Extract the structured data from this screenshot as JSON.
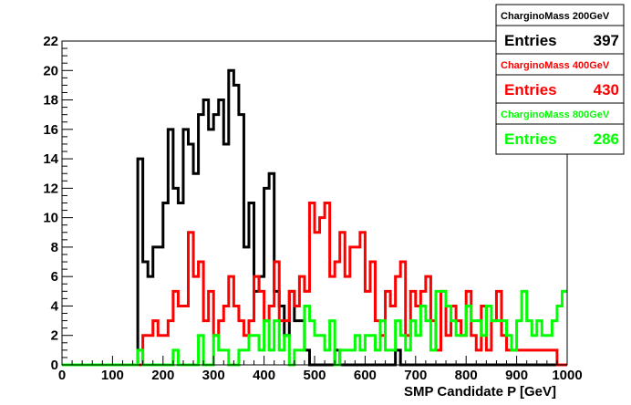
{
  "chart_data": {
    "type": "histogram-step",
    "xlabel": "SMP Candidate P [GeV]",
    "ylabel": "",
    "xlim": [
      0,
      1000
    ],
    "ylim": [
      0,
      22
    ],
    "x_ticks": [
      0,
      100,
      200,
      300,
      400,
      500,
      600,
      700,
      800,
      900,
      1000
    ],
    "y_ticks": [
      0,
      2,
      4,
      6,
      8,
      10,
      12,
      14,
      16,
      18,
      20,
      22
    ],
    "grid": false,
    "legend": "stat boxes, top-right",
    "bin_width": 10,
    "series": [
      {
        "name": "CharginoMass 200GeV",
        "color": "#000000",
        "entries_label": "Entries",
        "entries_value": "397",
        "values": [
          0,
          0,
          0,
          0,
          0,
          0,
          0,
          0,
          0,
          0,
          0,
          0,
          0,
          0,
          0,
          14,
          7,
          6,
          8,
          8,
          11,
          16,
          12,
          11,
          16,
          15,
          13,
          17,
          18,
          16,
          17,
          18,
          15,
          20,
          19,
          17,
          8,
          11,
          5,
          6,
          12,
          13,
          5,
          4,
          2,
          5,
          3,
          3,
          1,
          0,
          0,
          0,
          0,
          0,
          1,
          0,
          0,
          0,
          0,
          0,
          0,
          0,
          0,
          0,
          0,
          0,
          1,
          0,
          0,
          0,
          0,
          0,
          0,
          0,
          0,
          0,
          0,
          0,
          0,
          0,
          0,
          0,
          0,
          0,
          0,
          0,
          0,
          0,
          0,
          0,
          0,
          0,
          0,
          0,
          0,
          0,
          0,
          0,
          0,
          0
        ]
      },
      {
        "name": "CharginoMass 400GeV",
        "color": "#ff0000",
        "entries_label": "Entries",
        "entries_value": "430",
        "values": [
          0,
          0,
          0,
          0,
          0,
          0,
          0,
          0,
          0,
          0,
          0,
          0,
          0,
          0,
          0,
          0,
          2,
          2,
          3,
          2,
          2,
          3,
          5,
          4,
          4,
          9,
          6,
          7,
          3,
          5,
          2,
          3,
          4,
          6,
          4,
          3,
          2,
          3,
          6,
          5,
          3,
          4,
          7,
          3,
          3,
          5,
          4,
          6,
          5,
          11,
          9,
          10,
          11,
          6,
          7,
          9,
          6,
          8,
          8,
          9,
          5,
          7,
          3,
          2,
          5,
          4,
          6,
          7,
          2,
          5,
          4,
          5,
          6,
          3,
          1,
          5,
          2,
          4,
          3,
          2,
          5,
          2,
          1,
          4,
          1,
          3,
          5,
          2,
          1,
          1,
          1,
          1,
          1,
          1,
          1,
          1,
          1,
          1,
          0,
          0
        ]
      },
      {
        "name": "CharginoMass 800GeV",
        "color": "#00ff00",
        "entries_label": "Entries",
        "entries_value": "286",
        "values": [
          0,
          0,
          0,
          0,
          0,
          0,
          0,
          0,
          0,
          0,
          0,
          0,
          0,
          0,
          0,
          1,
          0,
          0,
          0,
          0,
          0,
          0,
          1,
          0,
          0,
          0,
          0,
          2,
          0,
          0,
          2,
          1,
          1,
          0,
          0,
          1,
          1,
          2,
          2,
          1,
          3,
          1,
          3,
          1,
          2,
          0,
          1,
          1,
          4,
          3,
          2,
          2,
          1,
          3,
          0,
          1,
          1,
          1,
          2,
          1,
          2,
          2,
          1,
          3,
          1,
          1,
          3,
          2,
          1,
          3,
          2,
          4,
          3,
          1,
          5,
          5,
          4,
          3,
          2,
          2,
          4,
          3,
          3,
          2,
          4,
          3,
          3,
          3,
          2,
          1,
          3,
          5,
          3,
          2,
          3,
          2,
          2,
          3,
          4,
          5
        ]
      }
    ]
  }
}
